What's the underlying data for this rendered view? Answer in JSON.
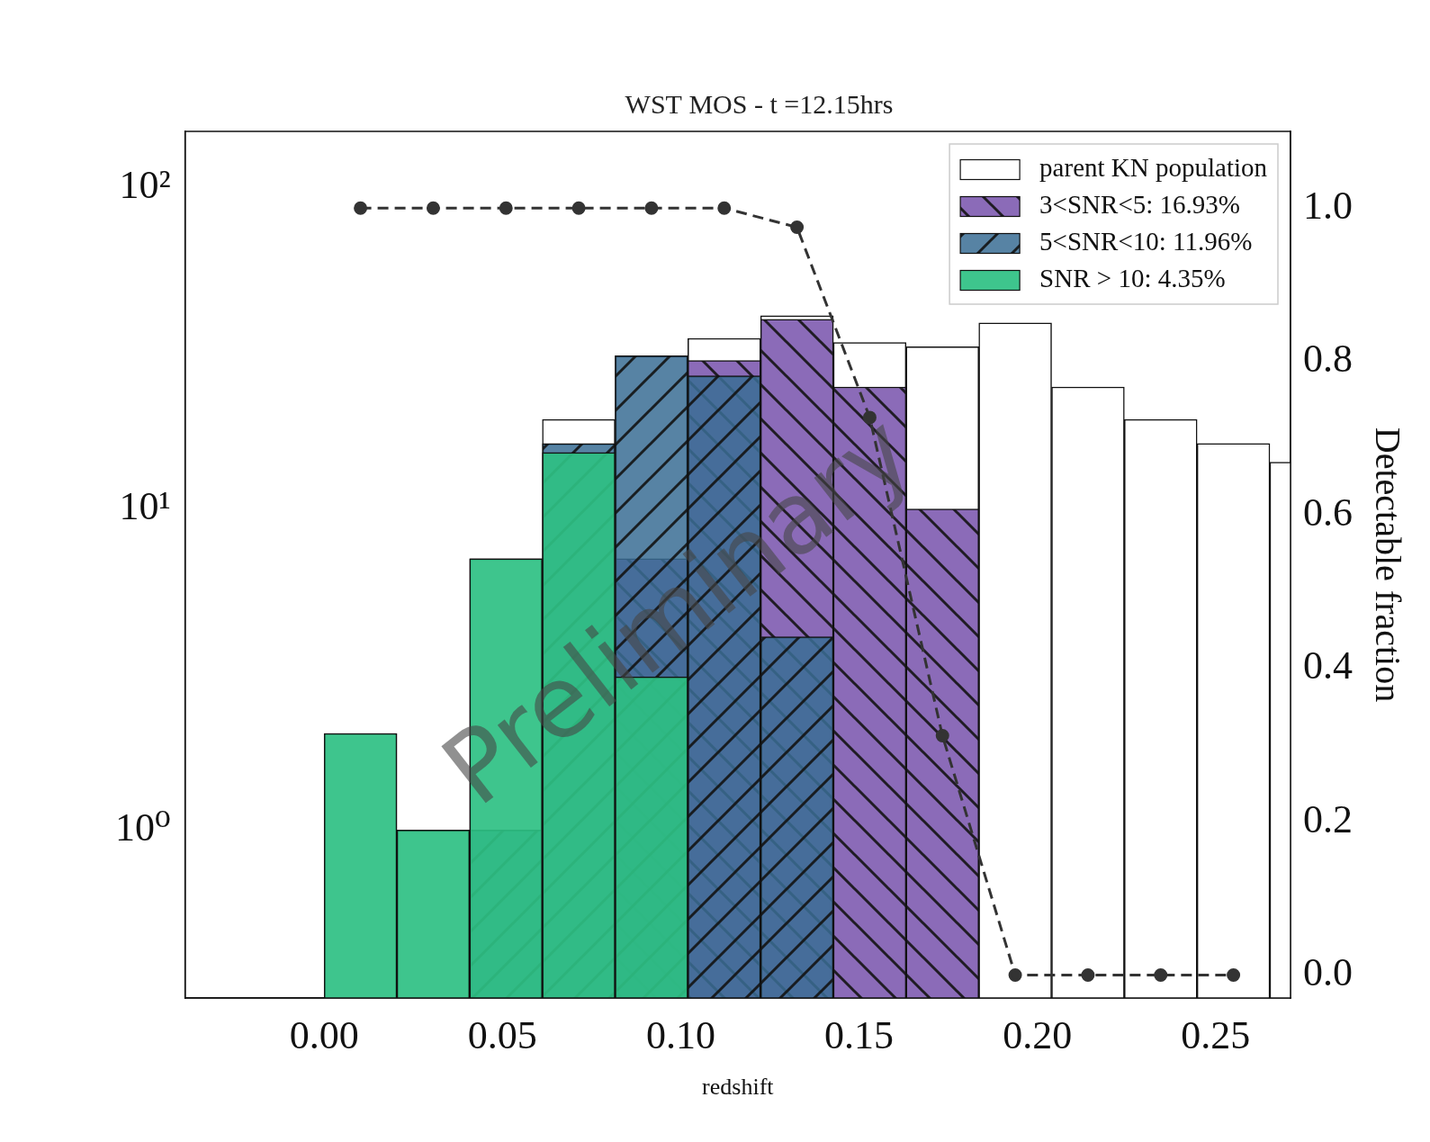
{
  "chart_data": {
    "type": "histogram",
    "title": "WST MOS - t =12.15hrs",
    "x_label": "redshift",
    "y2_label": "Detectable fraction",
    "annotations": [
      "Preliminary"
    ],
    "log": "y",
    "grid": false,
    "legend": "upper right",
    "bins": [
      0,
      0.0204,
      0.0408,
      0.0612,
      0.0816,
      0.102,
      0.1224,
      0.1428,
      0.1632,
      0.1836,
      0.204,
      0.2244,
      0.2448,
      0.2652,
      0.2856
    ],
    "xlim": [
      -0.039,
      0.271
    ],
    "xticks": [
      {
        "value": 0,
        "label": "0.00"
      },
      0.05,
      {
        "value": 0.1,
        "label": "0.10"
      },
      0.15,
      {
        "value": 0.2,
        "label": "0.20"
      },
      0.25
    ],
    "ylim": [
      0.3,
      150
    ],
    "yticks": [
      {
        "value": 1,
        "label": "10⁰"
      },
      {
        "value": 10,
        "label": "10¹"
      },
      {
        "value": 100,
        "label": "10²"
      }
    ],
    "y2lim": [
      -0.03,
      1.1
    ],
    "y2ticks": [
      {
        "value": 0,
        "label": "0.0"
      },
      0.2,
      0.4,
      0.6,
      0.8,
      {
        "value": 1,
        "label": "1.0"
      }
    ],
    "series": [
      {
        "name": "parent KN population",
        "type": "bar",
        "color": "#ffffff",
        "values": [
          2,
          1,
          7,
          19,
          30,
          34,
          40,
          33,
          32,
          38,
          24,
          19,
          16,
          14
        ]
      },
      {
        "name": "3<SNR<5: 16.93%",
        "type": "bar",
        "color": "#8b6bb8",
        "values": [
          null,
          null,
          null,
          null,
          7,
          29,
          39,
          24,
          10,
          null,
          null,
          null,
          null,
          null
        ]
      },
      {
        "name": "5<SNR<10: 11.96%",
        "type": "bar",
        "color": "#3a6d94",
        "values": [
          null,
          null,
          1,
          16,
          30,
          26,
          4,
          null,
          null,
          null,
          null,
          null,
          null,
          null
        ]
      },
      {
        "name": "SNR > 10: 4.35%",
        "type": "bar",
        "color": "#2ec083",
        "values": [
          2,
          1,
          7,
          15,
          3,
          null,
          null,
          null,
          null,
          null,
          null,
          null,
          null,
          null
        ]
      },
      {
        "type": "line",
        "axis": "y2",
        "color": "#333333",
        "marker": "o",
        "line_style": "dashed",
        "values": [
          1,
          1,
          1,
          1,
          1,
          1,
          0.975,
          0.727,
          0.312,
          0,
          0,
          0,
          0,
          null
        ]
      }
    ]
  }
}
